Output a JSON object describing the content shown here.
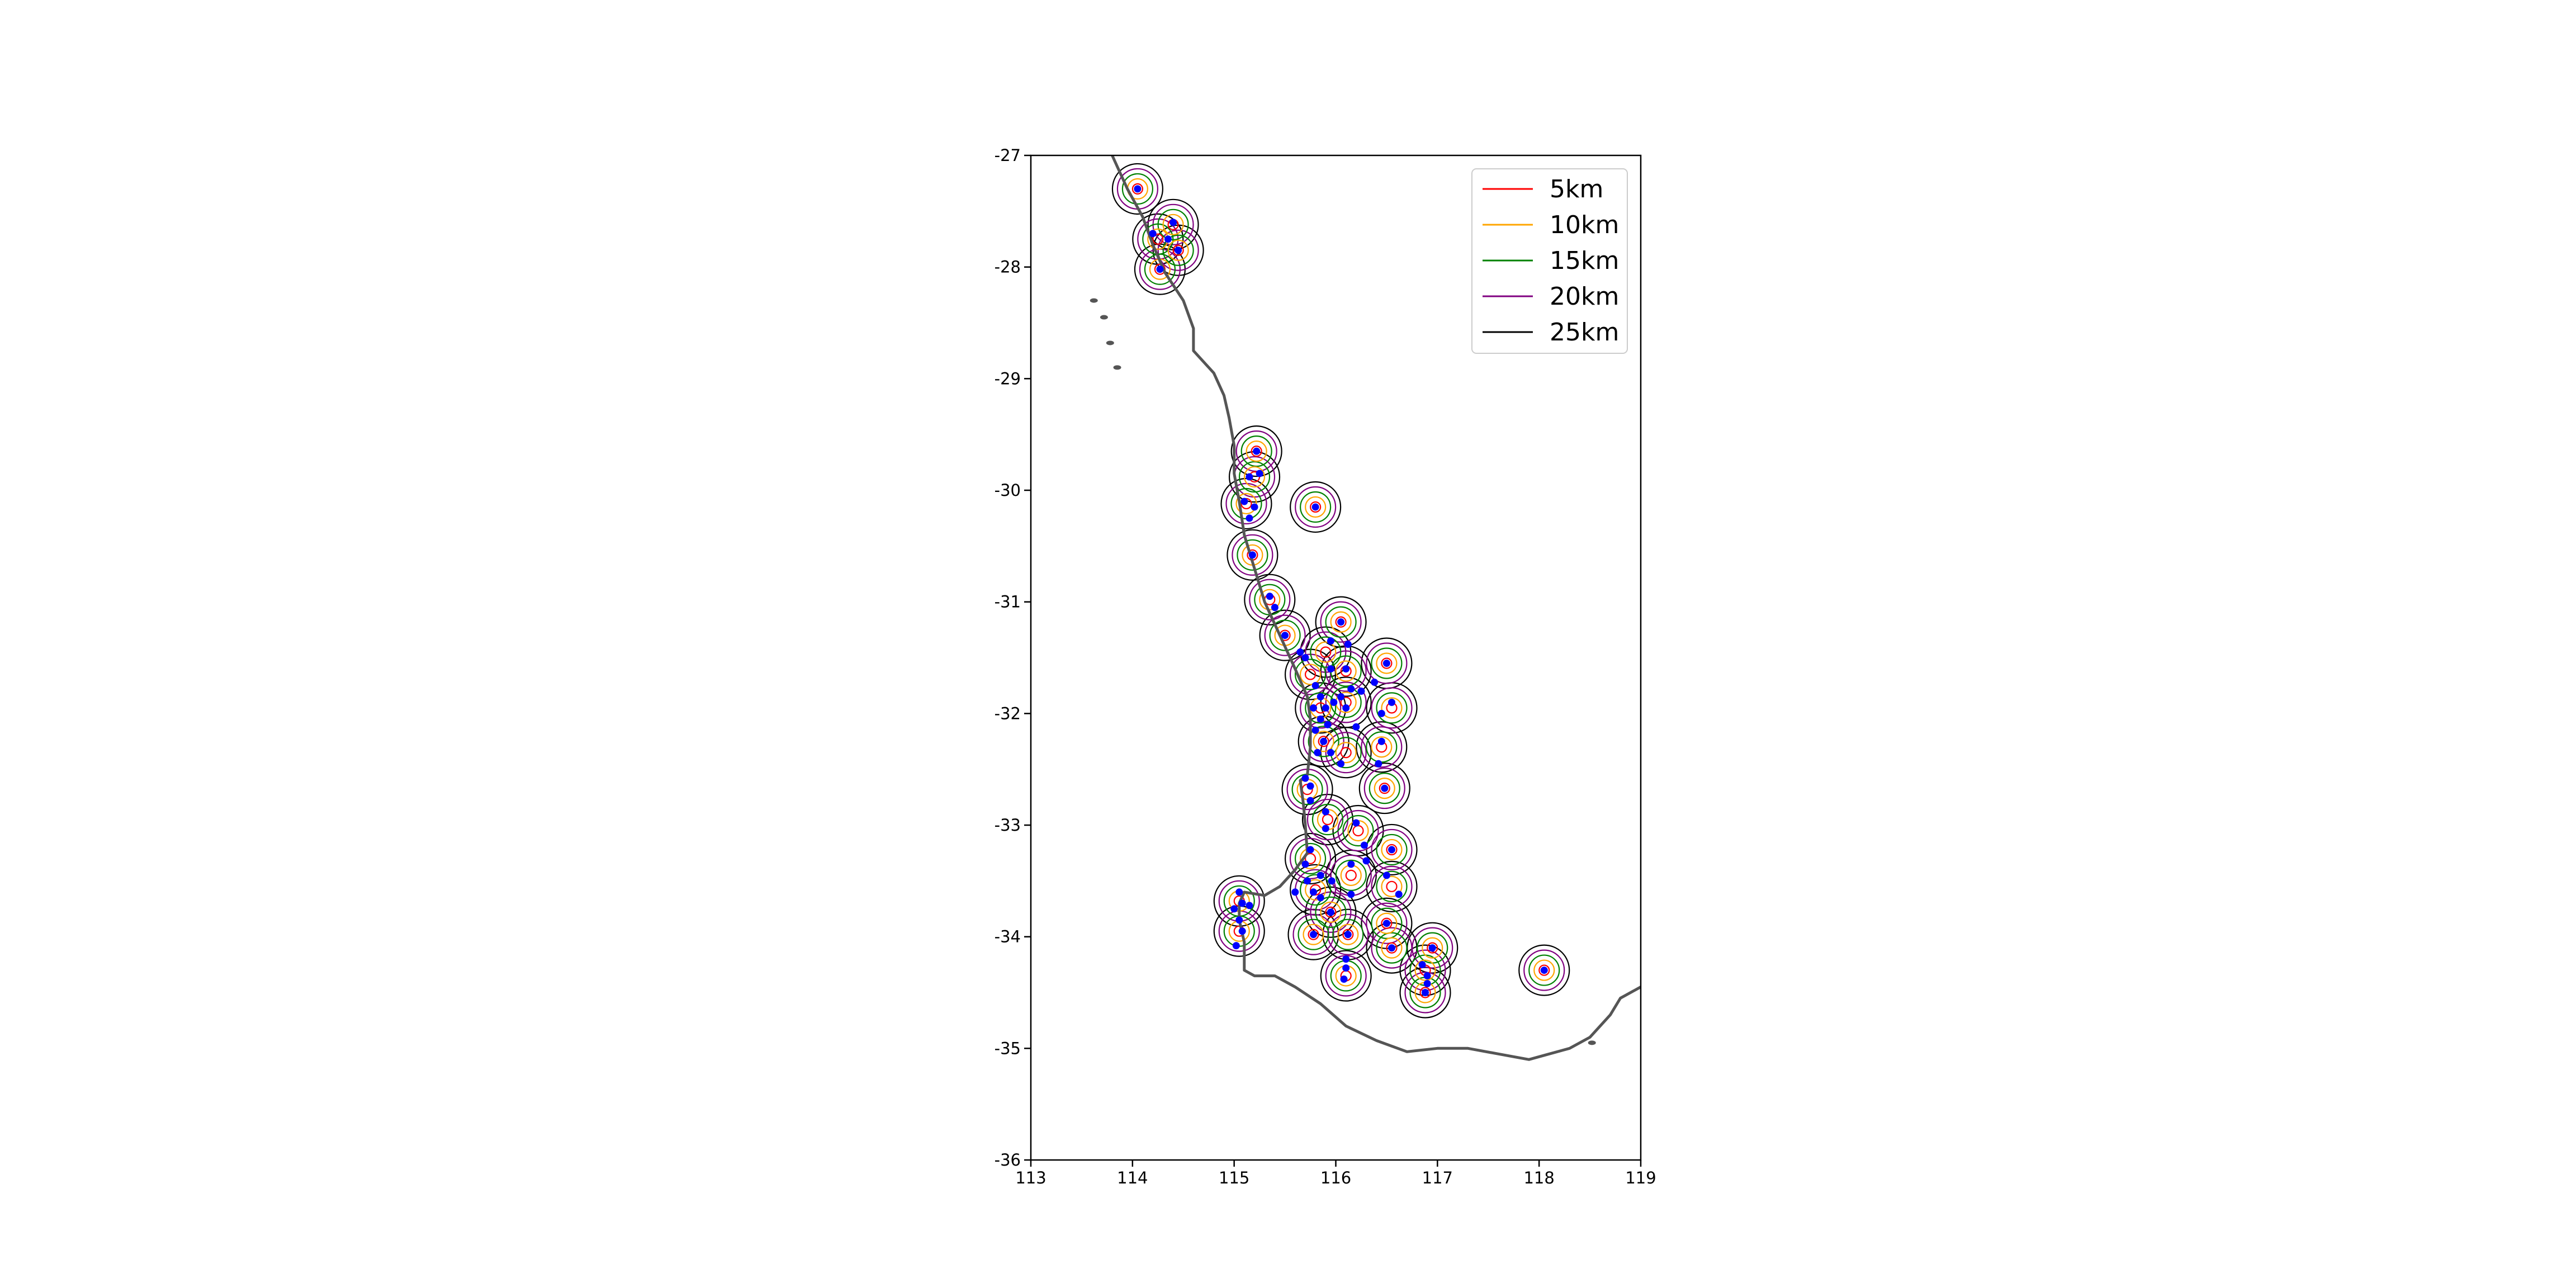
{
  "chart_data": {
    "type": "scatter",
    "title": "",
    "xlabel": "",
    "ylabel": "",
    "xlim": [
      113,
      119
    ],
    "ylim": [
      -36,
      -27
    ],
    "x_ticks": [
      "113",
      "114",
      "115",
      "116",
      "117",
      "118",
      "119"
    ],
    "y_ticks": [
      "-27",
      "-28",
      "-29",
      "-30",
      "-31",
      "-32",
      "-33",
      "-34",
      "-35",
      "-36"
    ],
    "grid": false,
    "legend_position": "top-right",
    "point_color": "#0000ff",
    "coastline_color": "#555555",
    "buffer_series": [
      {
        "name": "5km",
        "radius_km": 5,
        "color": "#ff0000"
      },
      {
        "name": "10km",
        "radius_km": 10,
        "color": "#ffa500"
      },
      {
        "name": "15km",
        "radius_km": 15,
        "color": "#008000"
      },
      {
        "name": "20km",
        "radius_km": 20,
        "color": "#800080"
      },
      {
        "name": "25km",
        "radius_km": 25,
        "color": "#000000"
      }
    ],
    "points": [
      [
        114.05,
        -27.3
      ],
      [
        114.2,
        -27.7
      ],
      [
        114.4,
        -27.6
      ],
      [
        114.35,
        -27.75
      ],
      [
        114.45,
        -27.85
      ],
      [
        114.27,
        -28.02
      ],
      [
        115.22,
        -29.65
      ],
      [
        115.25,
        -29.85
      ],
      [
        115.15,
        -29.88
      ],
      [
        115.1,
        -30.1
      ],
      [
        115.2,
        -30.15
      ],
      [
        115.15,
        -30.25
      ],
      [
        115.8,
        -30.15
      ],
      [
        115.18,
        -30.58
      ],
      [
        115.35,
        -30.95
      ],
      [
        115.4,
        -31.05
      ],
      [
        115.5,
        -31.3
      ],
      [
        115.65,
        -31.45
      ],
      [
        115.7,
        -31.5
      ],
      [
        115.95,
        -31.35
      ],
      [
        116.05,
        -31.18
      ],
      [
        116.12,
        -31.38
      ],
      [
        116.1,
        -31.6
      ],
      [
        115.95,
        -31.6
      ],
      [
        115.8,
        -31.75
      ],
      [
        115.85,
        -31.85
      ],
      [
        115.9,
        -31.95
      ],
      [
        115.85,
        -32.05
      ],
      [
        115.8,
        -32.15
      ],
      [
        115.88,
        -32.25
      ],
      [
        115.95,
        -32.35
      ],
      [
        116.05,
        -32.45
      ],
      [
        115.78,
        -31.95
      ],
      [
        115.82,
        -32.35
      ],
      [
        115.92,
        -32.1
      ],
      [
        115.98,
        -31.9
      ],
      [
        116.05,
        -31.85
      ],
      [
        116.1,
        -31.95
      ],
      [
        116.15,
        -31.78
      ],
      [
        116.25,
        -31.8
      ],
      [
        116.2,
        -32.12
      ],
      [
        116.38,
        -31.72
      ],
      [
        116.5,
        -31.55
      ],
      [
        116.55,
        -31.9
      ],
      [
        116.45,
        -32.0
      ],
      [
        116.45,
        -32.25
      ],
      [
        116.42,
        -32.45
      ],
      [
        116.48,
        -32.67
      ],
      [
        115.7,
        -32.58
      ],
      [
        115.75,
        -32.78
      ],
      [
        115.75,
        -32.65
      ],
      [
        115.9,
        -32.88
      ],
      [
        115.9,
        -33.03
      ],
      [
        116.2,
        -32.98
      ],
      [
        116.28,
        -33.18
      ],
      [
        116.15,
        -33.35
      ],
      [
        116.3,
        -33.32
      ],
      [
        116.55,
        -33.22
      ],
      [
        116.5,
        -33.45
      ],
      [
        116.62,
        -33.62
      ],
      [
        115.75,
        -33.22
      ],
      [
        115.7,
        -33.35
      ],
      [
        115.72,
        -33.5
      ],
      [
        115.85,
        -33.45
      ],
      [
        115.78,
        -33.6
      ],
      [
        115.85,
        -33.65
      ],
      [
        115.6,
        -33.6
      ],
      [
        115.96,
        -33.5
      ],
      [
        116.15,
        -33.62
      ],
      [
        115.95,
        -33.78
      ],
      [
        116.5,
        -33.88
      ],
      [
        116.12,
        -33.98
      ],
      [
        115.78,
        -33.98
      ],
      [
        115.05,
        -33.6
      ],
      [
        115.0,
        -33.75
      ],
      [
        115.08,
        -33.7
      ],
      [
        115.15,
        -33.72
      ],
      [
        115.05,
        -33.85
      ],
      [
        115.08,
        -33.95
      ],
      [
        115.02,
        -34.08
      ],
      [
        116.55,
        -34.1
      ],
      [
        116.1,
        -34.2
      ],
      [
        116.1,
        -34.28
      ],
      [
        116.08,
        -34.38
      ],
      [
        116.85,
        -34.25
      ],
      [
        116.9,
        -34.35
      ],
      [
        116.95,
        -34.1
      ],
      [
        116.9,
        -34.42
      ],
      [
        116.88,
        -34.5
      ],
      [
        118.05,
        -34.3
      ]
    ],
    "buffer_clusters": [
      [
        114.05,
        -27.3
      ],
      [
        114.4,
        -27.62
      ],
      [
        114.25,
        -27.75
      ],
      [
        114.45,
        -27.85
      ],
      [
        114.27,
        -28.02
      ],
      [
        115.22,
        -29.65
      ],
      [
        115.2,
        -29.88
      ],
      [
        115.12,
        -30.12
      ],
      [
        115.8,
        -30.15
      ],
      [
        115.18,
        -30.58
      ],
      [
        115.35,
        -30.98
      ],
      [
        115.5,
        -31.3
      ],
      [
        116.05,
        -31.18
      ],
      [
        115.9,
        -31.45
      ],
      [
        115.75,
        -31.65
      ],
      [
        116.1,
        -31.62
      ],
      [
        116.5,
        -31.55
      ],
      [
        115.85,
        -31.95
      ],
      [
        116.1,
        -31.9
      ],
      [
        116.55,
        -31.95
      ],
      [
        115.88,
        -32.25
      ],
      [
        116.1,
        -32.35
      ],
      [
        116.45,
        -32.3
      ],
      [
        116.48,
        -32.67
      ],
      [
        115.72,
        -32.68
      ],
      [
        115.92,
        -32.95
      ],
      [
        116.22,
        -33.05
      ],
      [
        116.55,
        -33.22
      ],
      [
        115.75,
        -33.3
      ],
      [
        116.15,
        -33.45
      ],
      [
        116.55,
        -33.55
      ],
      [
        115.8,
        -33.58
      ],
      [
        115.95,
        -33.78
      ],
      [
        116.5,
        -33.88
      ],
      [
        115.78,
        -33.98
      ],
      [
        116.12,
        -33.98
      ],
      [
        115.05,
        -33.68
      ],
      [
        115.05,
        -33.95
      ],
      [
        116.1,
        -34.35
      ],
      [
        116.55,
        -34.1
      ],
      [
        116.95,
        -34.1
      ],
      [
        116.88,
        -34.3
      ],
      [
        116.88,
        -34.5
      ],
      [
        118.05,
        -34.3
      ]
    ],
    "coastline": [
      [
        113.8,
        -27.0
      ],
      [
        113.95,
        -27.3
      ],
      [
        114.1,
        -27.55
      ],
      [
        114.2,
        -27.8
      ],
      [
        114.32,
        -28.05
      ],
      [
        114.5,
        -28.3
      ],
      [
        114.6,
        -28.55
      ],
      [
        114.6,
        -28.75
      ],
      [
        114.8,
        -28.95
      ],
      [
        114.9,
        -29.15
      ],
      [
        114.95,
        -29.35
      ],
      [
        115.0,
        -29.6
      ],
      [
        115.0,
        -29.85
      ],
      [
        115.05,
        -30.1
      ],
      [
        115.1,
        -30.4
      ],
      [
        115.2,
        -30.7
      ],
      [
        115.3,
        -31.0
      ],
      [
        115.45,
        -31.3
      ],
      [
        115.6,
        -31.6
      ],
      [
        115.72,
        -31.85
      ],
      [
        115.75,
        -32.05
      ],
      [
        115.75,
        -32.3
      ],
      [
        115.72,
        -32.55
      ],
      [
        115.65,
        -32.6
      ],
      [
        115.68,
        -32.8
      ],
      [
        115.7,
        -33.0
      ],
      [
        115.72,
        -33.25
      ],
      [
        115.6,
        -33.4
      ],
      [
        115.45,
        -33.55
      ],
      [
        115.3,
        -33.63
      ],
      [
        115.1,
        -33.6
      ],
      [
        115.05,
        -33.7
      ],
      [
        115.05,
        -33.85
      ],
      [
        115.1,
        -34.05
      ],
      [
        115.1,
        -34.3
      ],
      [
        115.2,
        -34.35
      ],
      [
        115.4,
        -34.35
      ],
      [
        115.6,
        -34.45
      ],
      [
        115.85,
        -34.6
      ],
      [
        116.1,
        -34.8
      ],
      [
        116.4,
        -34.93
      ],
      [
        116.7,
        -35.03
      ],
      [
        117.0,
        -35.0
      ],
      [
        117.3,
        -35.0
      ],
      [
        117.6,
        -35.05
      ],
      [
        117.9,
        -35.1
      ],
      [
        118.1,
        -35.05
      ],
      [
        118.3,
        -35.0
      ],
      [
        118.5,
        -34.9
      ],
      [
        118.7,
        -34.7
      ],
      [
        118.8,
        -34.55
      ],
      [
        119.0,
        -34.45
      ]
    ],
    "islands": [
      [
        113.62,
        -28.3
      ],
      [
        113.72,
        -28.45
      ],
      [
        113.78,
        -28.68
      ],
      [
        113.85,
        -28.9
      ],
      [
        118.52,
        -34.95
      ]
    ],
    "legend": [
      {
        "label": "5km",
        "color": "#ff0000"
      },
      {
        "label": "10km",
        "color": "#ffa500"
      },
      {
        "label": "15km",
        "color": "#008000"
      },
      {
        "label": "20km",
        "color": "#800080"
      },
      {
        "label": "25km",
        "color": "#000000"
      }
    ]
  }
}
